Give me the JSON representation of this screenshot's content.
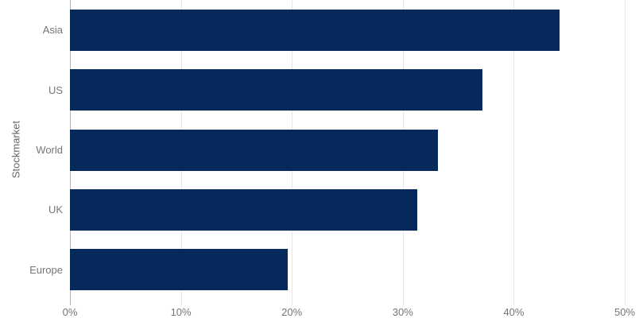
{
  "chart_data": {
    "type": "bar",
    "orientation": "horizontal",
    "title": "",
    "ylabel": "Stockmarket",
    "xlabel": "",
    "categories": [
      "Asia",
      "US",
      "World",
      "UK",
      "Europe"
    ],
    "values": [
      44.1,
      37.2,
      33.2,
      31.3,
      19.6
    ],
    "x_ticks": [
      "0%",
      "10%",
      "20%",
      "30%",
      "40%",
      "50%"
    ],
    "xlim": [
      0,
      50
    ],
    "grid": true,
    "legend": "none",
    "colors": {
      "bar": "#04295a",
      "gridline": "#e6e6e6",
      "axis_line": "#b3b3b3",
      "tick_text": "#757575",
      "category_text": "#757575",
      "axis_title_text": "#666666"
    }
  }
}
